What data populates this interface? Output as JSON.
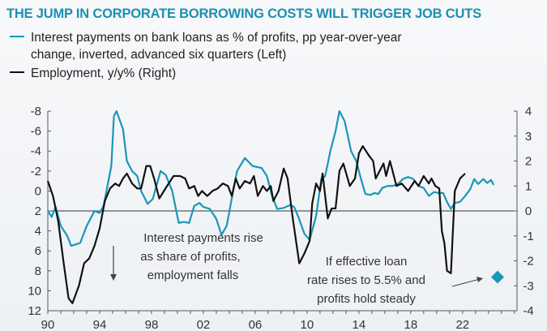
{
  "chart_data": {
    "type": "line",
    "title": "THE JUMP IN CORPORATE BORROWING COSTS WILL TRIGGER JOB CUTS",
    "colors": {
      "interest": "#1a96b9",
      "employment": "#111111",
      "title": "#1c8fb3"
    },
    "legend": [
      "Interest payments on bank loans as % of profits, pp year-over-year",
      "change, inverted, advanced six quarters (Left)",
      "Employment, y/y% (Right)"
    ],
    "left_axis": {
      "range": [
        -8,
        12
      ],
      "inverted": true,
      "ticks": [
        "-8",
        "-6",
        "-4",
        "-2",
        "0",
        "2",
        "4",
        "6",
        "8",
        "10",
        "12"
      ]
    },
    "right_axis": {
      "range": [
        -4,
        4
      ],
      "ticks": [
        "4",
        "3",
        "2",
        "1",
        "0",
        "-1",
        "-2",
        "-3",
        "-4"
      ]
    },
    "x_axis": {
      "range": [
        1990,
        2026.2
      ],
      "ticks": [
        "90",
        "94",
        "98",
        "02",
        "06",
        "10",
        "14",
        "18",
        "22"
      ]
    },
    "series": [
      {
        "name": "Interest payments on bank loans as % of profits (Left, inverted)",
        "axis": "left",
        "points": [
          [
            1990,
            2
          ],
          [
            1990.3,
            2.6
          ],
          [
            1990.6,
            1.6
          ],
          [
            1991,
            3.5
          ],
          [
            1991.5,
            4.5
          ],
          [
            1991.8,
            5.5
          ],
          [
            1992.5,
            5.2
          ],
          [
            1993,
            3.5
          ],
          [
            1993.6,
            2.0
          ],
          [
            1994,
            2.2
          ],
          [
            1994.3,
            1.5
          ],
          [
            1994.6,
            -0.5
          ],
          [
            1994.9,
            -2.5
          ],
          [
            1995.1,
            -7.5
          ],
          [
            1995.3,
            -8
          ],
          [
            1995.8,
            -6.2
          ],
          [
            1996.1,
            -3
          ],
          [
            1996.5,
            -2
          ],
          [
            1996.9,
            -1.5
          ],
          [
            1997.2,
            0
          ],
          [
            1997.7,
            1.3
          ],
          [
            1998.1,
            0.8
          ],
          [
            1998.7,
            -2
          ],
          [
            1999.1,
            -1.6
          ],
          [
            1999.6,
            0
          ],
          [
            2000.1,
            3.2
          ],
          [
            2000.5,
            3.1
          ],
          [
            2000.9,
            3.2
          ],
          [
            2001.3,
            1.5
          ],
          [
            2001.7,
            1.2
          ],
          [
            2002,
            1.6
          ],
          [
            2002.5,
            1.8
          ],
          [
            2003,
            2.8
          ],
          [
            2003.4,
            4.4
          ],
          [
            2003.8,
            3.5
          ],
          [
            2004.3,
            0
          ],
          [
            2004.6,
            -2
          ],
          [
            2005.2,
            -3.3
          ],
          [
            2005.8,
            -2.5
          ],
          [
            2006.5,
            -2.3
          ],
          [
            2006.9,
            -1.5
          ],
          [
            2007.3,
            0.5
          ],
          [
            2007.7,
            1.8
          ],
          [
            2008.2,
            1.7
          ],
          [
            2008.7,
            1.4
          ],
          [
            2009,
            1.6
          ],
          [
            2009.3,
            2.5
          ],
          [
            2009.8,
            4.3
          ],
          [
            2010.2,
            4.9
          ],
          [
            2010.7,
            2.5
          ],
          [
            2011.1,
            -1.2
          ],
          [
            2011.4,
            -1.5
          ],
          [
            2011.8,
            -4
          ],
          [
            2012.2,
            -6
          ],
          [
            2012.5,
            -8
          ],
          [
            2012.9,
            -7
          ],
          [
            2013.4,
            -4
          ],
          [
            2013.8,
            -3
          ],
          [
            2014.1,
            -1.5
          ],
          [
            2014.5,
            0.3
          ],
          [
            2014.9,
            0.4
          ],
          [
            2015.2,
            0.2
          ],
          [
            2015.5,
            0.3
          ],
          [
            2015.8,
            -0.3
          ],
          [
            2016.2,
            -0.5
          ],
          [
            2016.6,
            -0.5
          ],
          [
            2017,
            -0.7
          ],
          [
            2017.4,
            -1.2
          ],
          [
            2017.8,
            -1.4
          ],
          [
            2018.2,
            -1.2
          ],
          [
            2018.6,
            -0.5
          ],
          [
            2019.0,
            -0.3
          ],
          [
            2019.4,
            0.5
          ],
          [
            2019.8,
            0.1
          ],
          [
            2020.1,
            0.2
          ],
          [
            2020.5,
            0.2
          ],
          [
            2020.8,
            1.1
          ],
          [
            2021.1,
            1.8
          ],
          [
            2021.4,
            1.2
          ],
          [
            2021.8,
            1.1
          ],
          [
            2022.2,
            0.5
          ],
          [
            2022.6,
            -0.2
          ],
          [
            2022.9,
            -1.2
          ],
          [
            2023.2,
            -0.7
          ],
          [
            2023.6,
            -1.2
          ],
          [
            2023.9,
            -0.8
          ],
          [
            2024.2,
            -1.1
          ],
          [
            2024.4,
            -0.6
          ]
        ]
      },
      {
        "name": "Employment, y/y% (Right)",
        "axis": "right",
        "points": [
          [
            1990,
            1.2
          ],
          [
            1990.4,
            0.6
          ],
          [
            1990.8,
            -0.4
          ],
          [
            1991.2,
            -2
          ],
          [
            1991.6,
            -3.5
          ],
          [
            1991.9,
            -3.7
          ],
          [
            1992.4,
            -3.0
          ],
          [
            1992.8,
            -2.1
          ],
          [
            1993.2,
            -1.9
          ],
          [
            1993.6,
            -1.4
          ],
          [
            1994,
            -0.7
          ],
          [
            1994.4,
            0.4
          ],
          [
            1994.8,
            0.9
          ],
          [
            1995.2,
            1.1
          ],
          [
            1995.5,
            1.0
          ],
          [
            1995.8,
            1.3
          ],
          [
            1996.1,
            1.5
          ],
          [
            1996.5,
            1.1
          ],
          [
            1996.9,
            0.9
          ],
          [
            1997.2,
            0.9
          ],
          [
            1997.6,
            1.8
          ],
          [
            1997.9,
            1.8
          ],
          [
            1998.2,
            1.3
          ],
          [
            1998.6,
            0.5
          ],
          [
            1999.2,
            1.0
          ],
          [
            1999.7,
            1.4
          ],
          [
            2000.2,
            1.4
          ],
          [
            2000.6,
            1.3
          ],
          [
            2000.9,
            0.9
          ],
          [
            2001.3,
            1.0
          ],
          [
            2001.6,
            0.6
          ],
          [
            2001.9,
            0.8
          ],
          [
            2002.3,
            0.6
          ],
          [
            2002.7,
            0.8
          ],
          [
            2003.1,
            0.9
          ],
          [
            2003.5,
            1.1
          ],
          [
            2003.9,
            1.0
          ],
          [
            2004.2,
            0.6
          ],
          [
            2004.5,
            1.3
          ],
          [
            2004.8,
            0.9
          ],
          [
            2005.2,
            1.2
          ],
          [
            2005.6,
            1.1
          ],
          [
            2005.9,
            1.4
          ],
          [
            2006.2,
            0.6
          ],
          [
            2006.6,
            1.0
          ],
          [
            2006.9,
            0.8
          ],
          [
            2007.2,
            1.0
          ],
          [
            2007.4,
            0.4
          ],
          [
            2007.8,
            0.8
          ],
          [
            2008.2,
            1.7
          ],
          [
            2008.5,
            1.3
          ],
          [
            2008.9,
            -0.3
          ],
          [
            2009.4,
            -2.1
          ],
          [
            2009.8,
            -1.7
          ],
          [
            2010.2,
            -1.2
          ],
          [
            2010.4,
            0.3
          ],
          [
            2010.7,
            1.1
          ],
          [
            2011.0,
            0.8
          ],
          [
            2011.2,
            1.5
          ],
          [
            2011.6,
            -0.3
          ],
          [
            2011.9,
            0.1
          ],
          [
            2012.2,
            0.1
          ],
          [
            2012.5,
            1.6
          ],
          [
            2012.8,
            1.9
          ],
          [
            2013.3,
            1.0
          ],
          [
            2013.7,
            1.3
          ],
          [
            2014.0,
            2.3
          ],
          [
            2014.3,
            2.6
          ],
          [
            2014.8,
            2.2
          ],
          [
            2015.1,
            2.0
          ],
          [
            2015.3,
            1.3
          ],
          [
            2015.9,
            1.9
          ],
          [
            2016.1,
            1.4
          ],
          [
            2016.4,
            2.0
          ],
          [
            2016.9,
            1.0
          ],
          [
            2017.3,
            1.1
          ],
          [
            2017.8,
            0.8
          ],
          [
            2018.3,
            1.2
          ],
          [
            2018.6,
            1.0
          ],
          [
            2019.0,
            1.4
          ],
          [
            2019.4,
            1.1
          ],
          [
            2019.6,
            1.3
          ],
          [
            2019.9,
            1.0
          ],
          [
            2020.2,
            0.9
          ],
          [
            2020.4,
            -0.8
          ],
          [
            2020.6,
            -1.3
          ],
          [
            2020.8,
            -2.4
          ],
          [
            2021.1,
            -2.5
          ],
          [
            2021.4,
            0.8
          ],
          [
            2021.8,
            1.3
          ],
          [
            2022.2,
            1.5
          ]
        ]
      }
    ],
    "projection": {
      "label": "If effective loan rate rises to 5.5% and profits hold steady",
      "x": 2024.7,
      "right_value": -2.65
    },
    "annotations": {
      "interest_rise": [
        "Interest payments rise",
        "as share of profits,",
        "employment falls"
      ],
      "projection": [
        "If effective loan",
        "rate rises to 5.5% and",
        "profits hold steady"
      ]
    }
  }
}
